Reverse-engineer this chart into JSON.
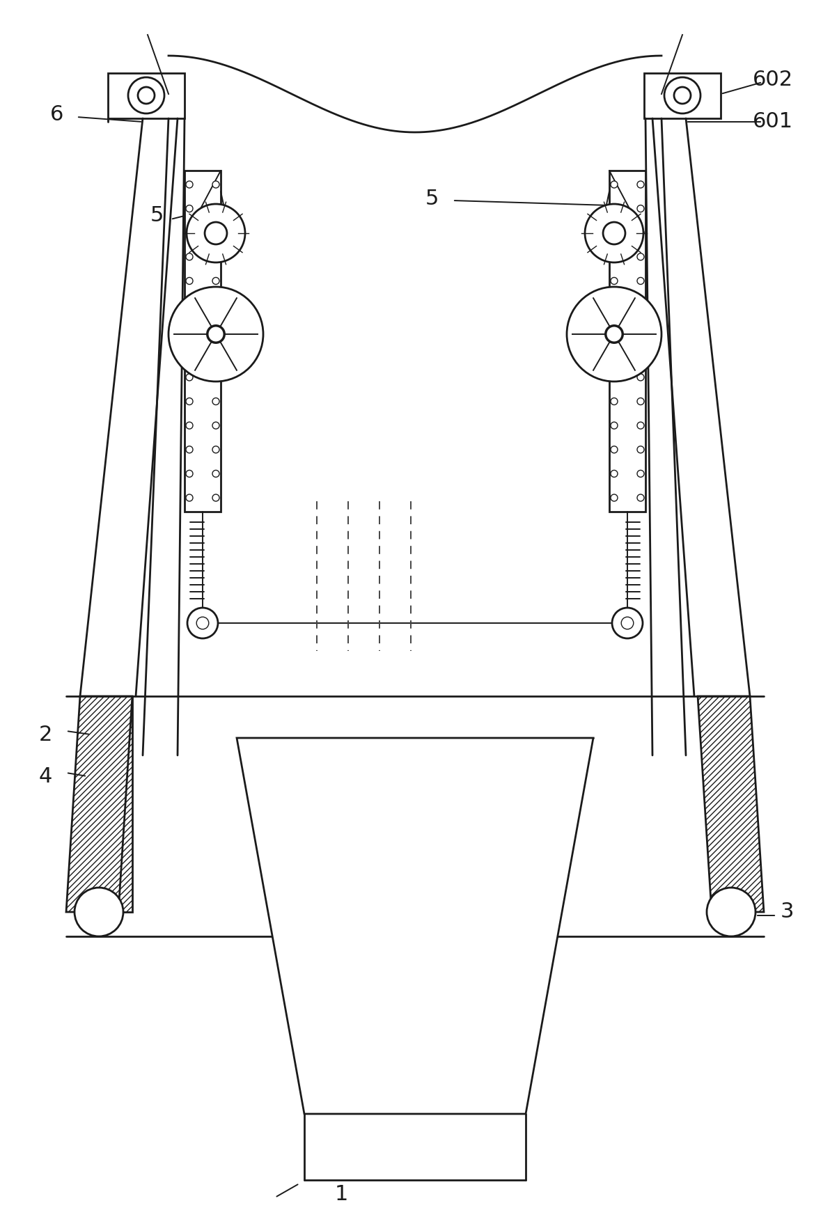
{
  "bg_color": "#ffffff",
  "line_color": "#1a1a1a",
  "fig_width": 11.92,
  "fig_height": 17.51,
  "dpi": 100
}
